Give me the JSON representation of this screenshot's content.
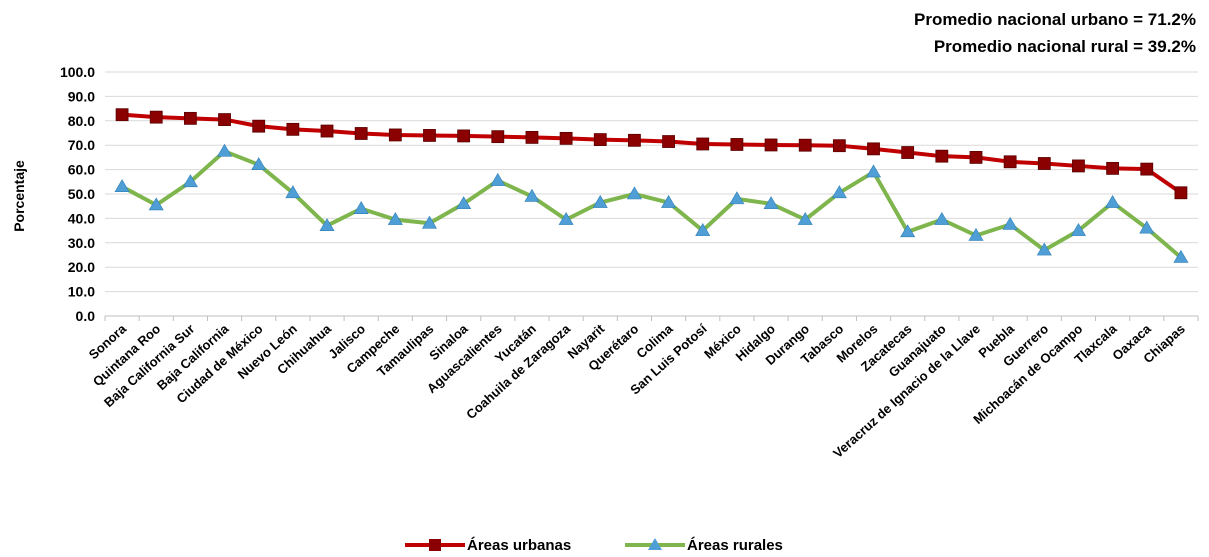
{
  "chart_data": {
    "type": "line",
    "title": "",
    "xlabel": "",
    "ylabel": "Porcentaje",
    "ylim": [
      0,
      100
    ],
    "yticks": [
      "0.0",
      "10.0",
      "20.0",
      "30.0",
      "40.0",
      "50.0",
      "60.0",
      "70.0",
      "80.0",
      "90.0",
      "100.0"
    ],
    "grid": true,
    "legend_position": "bottom",
    "annotations": [
      "Promedio nacional urbano = 71.2%",
      "Promedio nacional rural =  39.2%"
    ],
    "categories": [
      "Sonora",
      "Quintana Roo",
      "Baja California Sur",
      "Baja California",
      "Ciudad de México",
      "Nuevo León",
      "Chihuahua",
      "Jalisco",
      "Campeche",
      "Tamaulipas",
      "Sinaloa",
      "Aguascalientes",
      "Yucatán",
      "Coahuila de Zaragoza",
      "Nayarit",
      "Querétaro",
      "Colima",
      "San Luis Potosí",
      "México",
      "Hidalgo",
      "Durango",
      "Tabasco",
      "Morelos",
      "Zacatecas",
      "Guanajuato",
      "Veracruz de Ignacio de la Llave",
      "Puebla",
      "Guerrero",
      "Michoacán de Ocampo",
      "Tlaxcala",
      "Oaxaca",
      "Chiapas"
    ],
    "series": [
      {
        "name": "Áreas urbanas",
        "color": "#C00000",
        "marker": "square",
        "values": [
          82.5,
          81.5,
          81.0,
          80.5,
          77.8,
          76.5,
          75.8,
          74.8,
          74.2,
          74.0,
          73.8,
          73.5,
          73.2,
          72.8,
          72.3,
          72.0,
          71.5,
          70.5,
          70.3,
          70.1,
          70.0,
          69.8,
          68.5,
          67.0,
          65.5,
          65.0,
          63.2,
          62.5,
          61.5,
          60.5,
          60.2,
          50.5
        ]
      },
      {
        "name": "Áreas rurales",
        "color": "#7EB54D",
        "marker": "triangle",
        "values": [
          53.0,
          45.5,
          55.0,
          67.5,
          62.0,
          50.5,
          37.0,
          44.0,
          39.5,
          38.0,
          46.0,
          55.5,
          49.0,
          39.5,
          46.5,
          50.0,
          46.5,
          35.0,
          48.0,
          46.0,
          39.5,
          50.5,
          59.0,
          34.5,
          39.5,
          33.0,
          37.5,
          27.0,
          35.0,
          46.5,
          36.0,
          24.0
        ]
      }
    ]
  }
}
